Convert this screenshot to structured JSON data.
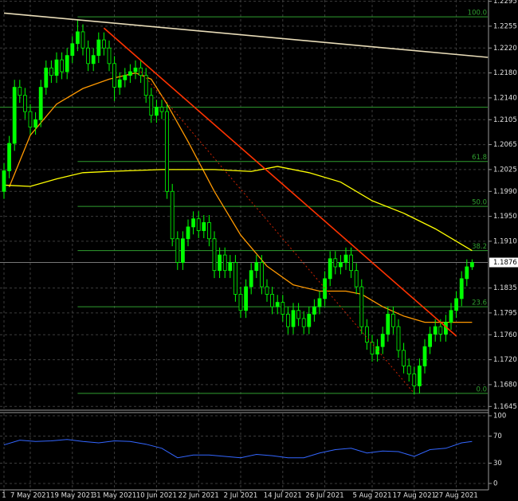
{
  "chart_data": {
    "type": "candlestick",
    "ylim": [
      1.1639,
      1.2297
    ],
    "yticks": [
      1.2295,
      {
        "value": 1.2255,
        "label": "1.2255"
      },
      {
        "value": 1.222,
        "label": "1.2220"
      },
      {
        "value": 1.218,
        "label": "1.2180"
      },
      {
        "value": 1.214,
        "label": "1.2140"
      },
      1.2105,
      1.2065,
      1.2025,
      {
        "value": 1.199,
        "label": "1.1990"
      },
      {
        "value": 1.195,
        "label": "1.1950"
      },
      {
        "value": 1.191,
        "label": "1.1910"
      },
      1.1835,
      1.1795,
      {
        "value": 1.176,
        "label": "1.1760"
      },
      {
        "value": 1.172,
        "label": "1.1720"
      },
      {
        "value": 1.168,
        "label": "1.1680"
      },
      1.1645
    ],
    "xticks": [
      {
        "value": 0,
        "label": "1"
      },
      {
        "value": 5,
        "label": "7 May 2021"
      },
      {
        "value": 13,
        "label": "19 May 2021"
      },
      {
        "value": 21,
        "label": "31 May 2021"
      },
      {
        "value": 29,
        "label": "10 Jun 2021"
      },
      {
        "value": 37,
        "label": "22 Jun 2021"
      },
      {
        "value": 45,
        "label": "2 Jul 2021"
      },
      {
        "value": 53,
        "label": "14 Jul 2021"
      },
      {
        "value": 61,
        "label": "26 Jul 2021"
      },
      {
        "value": 70,
        "label": "5 Aug 2021"
      },
      {
        "value": 78,
        "label": "17 Aug 2021"
      },
      {
        "value": 86,
        "label": "27 Aug 2021"
      }
    ],
    "grid": true,
    "up_color": "#00ff00",
    "down_color": "#000000",
    "ohlc": [
      [
        1.199,
        1.2035,
        1.1978,
        1.2023
      ],
      [
        1.2023,
        1.2079,
        1.2011,
        1.2067
      ],
      [
        1.2067,
        1.2169,
        1.2055,
        1.2157
      ],
      [
        1.2157,
        1.2169,
        1.2132,
        1.2144
      ],
      [
        1.2144,
        1.2156,
        1.2106,
        1.2118
      ],
      [
        1.2118,
        1.213,
        1.2081,
        1.2093
      ],
      [
        1.2093,
        1.2117,
        1.2081,
        1.2105
      ],
      [
        1.2105,
        1.2169,
        1.2093,
        1.2157
      ],
      [
        1.2157,
        1.22,
        1.2145,
        1.2188
      ],
      [
        1.2188,
        1.22,
        1.2164,
        1.2176
      ],
      [
        1.2176,
        1.2213,
        1.2164,
        1.2201
      ],
      [
        1.2201,
        1.2213,
        1.217,
        1.2182
      ],
      [
        1.2182,
        1.222,
        1.217,
        1.2208
      ],
      [
        1.2208,
        1.2239,
        1.2196,
        1.2227
      ],
      [
        1.2227,
        1.2266,
        1.2215,
        1.2246
      ],
      [
        1.2246,
        1.2258,
        1.2208,
        1.222
      ],
      [
        1.222,
        1.2232,
        1.2183,
        1.2195
      ],
      [
        1.2195,
        1.222,
        1.2183,
        1.2208
      ],
      [
        1.2208,
        1.2245,
        1.2196,
        1.2233
      ],
      [
        1.2233,
        1.2245,
        1.2208,
        1.222
      ],
      [
        1.222,
        1.2232,
        1.2183,
        1.2195
      ],
      [
        1.2195,
        1.2207,
        1.2135,
        1.2157
      ],
      [
        1.2157,
        1.2181,
        1.2145,
        1.2169
      ],
      [
        1.2169,
        1.2188,
        1.2157,
        1.2176
      ],
      [
        1.2176,
        1.2194,
        1.2164,
        1.2182
      ],
      [
        1.2182,
        1.22,
        1.217,
        1.2188
      ],
      [
        1.2188,
        1.22,
        1.2164,
        1.2176
      ],
      [
        1.2176,
        1.2188,
        1.2132,
        1.2144
      ],
      [
        1.2144,
        1.2156,
        1.21,
        1.2112
      ],
      [
        1.2112,
        1.2137,
        1.21,
        1.2125
      ],
      [
        1.2125,
        1.2137,
        1.2106,
        1.2118
      ],
      [
        1.2118,
        1.213,
        1.1978,
        1.199
      ],
      [
        1.199,
        1.2002,
        1.1902,
        1.1914
      ],
      [
        1.1914,
        1.1926,
        1.1864,
        1.1876
      ],
      [
        1.1876,
        1.1926,
        1.1864,
        1.1914
      ],
      [
        1.1914,
        1.1945,
        1.1902,
        1.1933
      ],
      [
        1.1933,
        1.1958,
        1.1921,
        1.1946
      ],
      [
        1.1946,
        1.1958,
        1.1915,
        1.1927
      ],
      [
        1.1927,
        1.1952,
        1.1915,
        1.194
      ],
      [
        1.194,
        1.1952,
        1.1902,
        1.1914
      ],
      [
        1.1914,
        1.1926,
        1.1851,
        1.1863
      ],
      [
        1.1863,
        1.19,
        1.1851,
        1.1888
      ],
      [
        1.1888,
        1.19,
        1.1851,
        1.1863
      ],
      [
        1.1863,
        1.1888,
        1.1851,
        1.1876
      ],
      [
        1.1876,
        1.1888,
        1.1813,
        1.1825
      ],
      [
        1.1825,
        1.1837,
        1.1787,
        1.1799
      ],
      [
        1.1799,
        1.1849,
        1.1787,
        1.1837
      ],
      [
        1.1837,
        1.1875,
        1.1825,
        1.1863
      ],
      [
        1.1863,
        1.1888,
        1.1851,
        1.1876
      ],
      [
        1.1876,
        1.1888,
        1.1825,
        1.1837
      ],
      [
        1.1837,
        1.1849,
        1.1813,
        1.1825
      ],
      [
        1.1825,
        1.1837,
        1.1793,
        1.1805
      ],
      [
        1.1805,
        1.1824,
        1.1793,
        1.1812
      ],
      [
        1.1812,
        1.1824,
        1.1781,
        1.1793
      ],
      [
        1.1793,
        1.1805,
        1.1761,
        1.1773
      ],
      [
        1.1773,
        1.1811,
        1.1761,
        1.1799
      ],
      [
        1.1799,
        1.1811,
        1.1774,
        1.1786
      ],
      [
        1.1786,
        1.1798,
        1.1761,
        1.1773
      ],
      [
        1.1773,
        1.1805,
        1.1761,
        1.1793
      ],
      [
        1.1793,
        1.1817,
        1.1781,
        1.1805
      ],
      [
        1.1805,
        1.183,
        1.1793,
        1.1818
      ],
      [
        1.1818,
        1.1862,
        1.1806,
        1.185
      ],
      [
        1.185,
        1.1894,
        1.1838,
        1.1882
      ],
      [
        1.1882,
        1.1894,
        1.1857,
        1.1869
      ],
      [
        1.1869,
        1.1888,
        1.1857,
        1.1876
      ],
      [
        1.1876,
        1.19,
        1.1864,
        1.1888
      ],
      [
        1.1888,
        1.19,
        1.1851,
        1.1863
      ],
      [
        1.1863,
        1.1875,
        1.1825,
        1.1837
      ],
      [
        1.1837,
        1.1849,
        1.1761,
        1.1773
      ],
      [
        1.1773,
        1.1785,
        1.1736,
        1.1748
      ],
      [
        1.1748,
        1.176,
        1.1717,
        1.1729
      ],
      [
        1.1729,
        1.1753,
        1.1717,
        1.1741
      ],
      [
        1.1741,
        1.1773,
        1.1729,
        1.1761
      ],
      [
        1.1761,
        1.1805,
        1.1749,
        1.1793
      ],
      [
        1.1793,
        1.1805,
        1.1761,
        1.1773
      ],
      [
        1.1773,
        1.1785,
        1.1723,
        1.1735
      ],
      [
        1.1735,
        1.1747,
        1.1698,
        1.171
      ],
      [
        1.171,
        1.1722,
        1.1685,
        1.1697
      ],
      [
        1.1697,
        1.1709,
        1.1664,
        1.1678
      ],
      [
        1.1678,
        1.1722,
        1.1666,
        1.171
      ],
      [
        1.171,
        1.1753,
        1.1698,
        1.1741
      ],
      [
        1.1741,
        1.1773,
        1.1729,
        1.1761
      ],
      [
        1.1761,
        1.1785,
        1.1749,
        1.1773
      ],
      [
        1.1773,
        1.1785,
        1.1749,
        1.1761
      ],
      [
        1.1761,
        1.1792,
        1.1749,
        1.178
      ],
      [
        1.178,
        1.1811,
        1.1768,
        1.1799
      ],
      [
        1.1799,
        1.183,
        1.1787,
        1.1818
      ],
      [
        1.1818,
        1.1862,
        1.1806,
        1.185
      ],
      [
        1.185,
        1.1881,
        1.1838,
        1.1869
      ],
      [
        1.1869,
        1.1881,
        1.1864,
        1.1876
      ]
    ],
    "lines": [
      {
        "color": "#ff9900",
        "x": [
          1,
          5,
          10,
          15,
          20,
          25,
          28,
          31,
          35,
          40,
          45,
          50,
          55,
          60,
          65,
          68,
          72,
          76,
          80,
          84,
          89
        ],
        "values": [
          1.1997,
          1.208,
          1.213,
          1.2155,
          1.217,
          1.218,
          1.217,
          1.213,
          1.207,
          1.199,
          1.192,
          1.187,
          1.184,
          1.183,
          1.183,
          1.1825,
          1.1805,
          1.179,
          1.178,
          1.178,
          1.178
        ]
      },
      {
        "color": "#ffff00",
        "x": [
          0,
          5,
          10,
          15,
          20,
          30,
          40,
          47,
          52,
          58,
          64,
          70,
          76,
          82,
          89
        ],
        "values": [
          1.2,
          1.1998,
          1.201,
          1.202,
          1.2022,
          1.2025,
          1.2025,
          1.2022,
          1.203,
          1.202,
          1.2005,
          1.1975,
          1.1955,
          1.193,
          1.1895
        ]
      }
    ],
    "trendlines": [
      {
        "color": "#e8dcb8",
        "x": [
          0,
          92
        ],
        "values": [
          1.2276,
          1.2205
        ]
      },
      {
        "color": "#ff3300",
        "x": [
          19,
          86
        ],
        "values": [
          1.2252,
          1.1758
        ]
      },
      {
        "color": "#cc2200",
        "dashed": true,
        "x": [
          26,
          78
        ],
        "values": [
          1.2182,
          1.1666
        ]
      }
    ],
    "fibo": {
      "color": "#2f9e2f",
      "x": [
        14,
        92
      ],
      "levels": [
        {
          "level": {
            "value": 100,
            "label": "100.0"
          },
          "price": 1.227
        },
        {
          "level": 61.8,
          "price": 1.2038
        },
        {
          "level": {
            "value": 50,
            "label": "50.0"
          },
          "price": 1.1966
        },
        {
          "level": 38.2,
          "price": 1.1895
        },
        {
          "level": 23.6,
          "price": 1.1805
        },
        {
          "level": {
            "value": 0,
            "label": "0.0"
          },
          "price": 1.1666
        }
      ]
    },
    "hline": 1.2125,
    "last_price": 1.1876,
    "rsi": {
      "color": "#3366ff",
      "ylim": [
        0,
        100
      ],
      "yticks": [
        100,
        70,
        30,
        0
      ],
      "x": [
        0,
        3,
        6,
        9,
        12,
        15,
        18,
        21,
        24,
        27,
        30,
        33,
        36,
        39,
        42,
        45,
        48,
        51,
        54,
        57,
        60,
        63,
        66,
        69,
        72,
        75,
        78,
        81,
        84,
        87,
        89
      ],
      "values": [
        57,
        64,
        62,
        63,
        65,
        62,
        60,
        63,
        62,
        58,
        52,
        38,
        42,
        42,
        40,
        38,
        43,
        41,
        38,
        38,
        45,
        50,
        52,
        45,
        48,
        47,
        40,
        50,
        52,
        60,
        62
      ]
    }
  }
}
